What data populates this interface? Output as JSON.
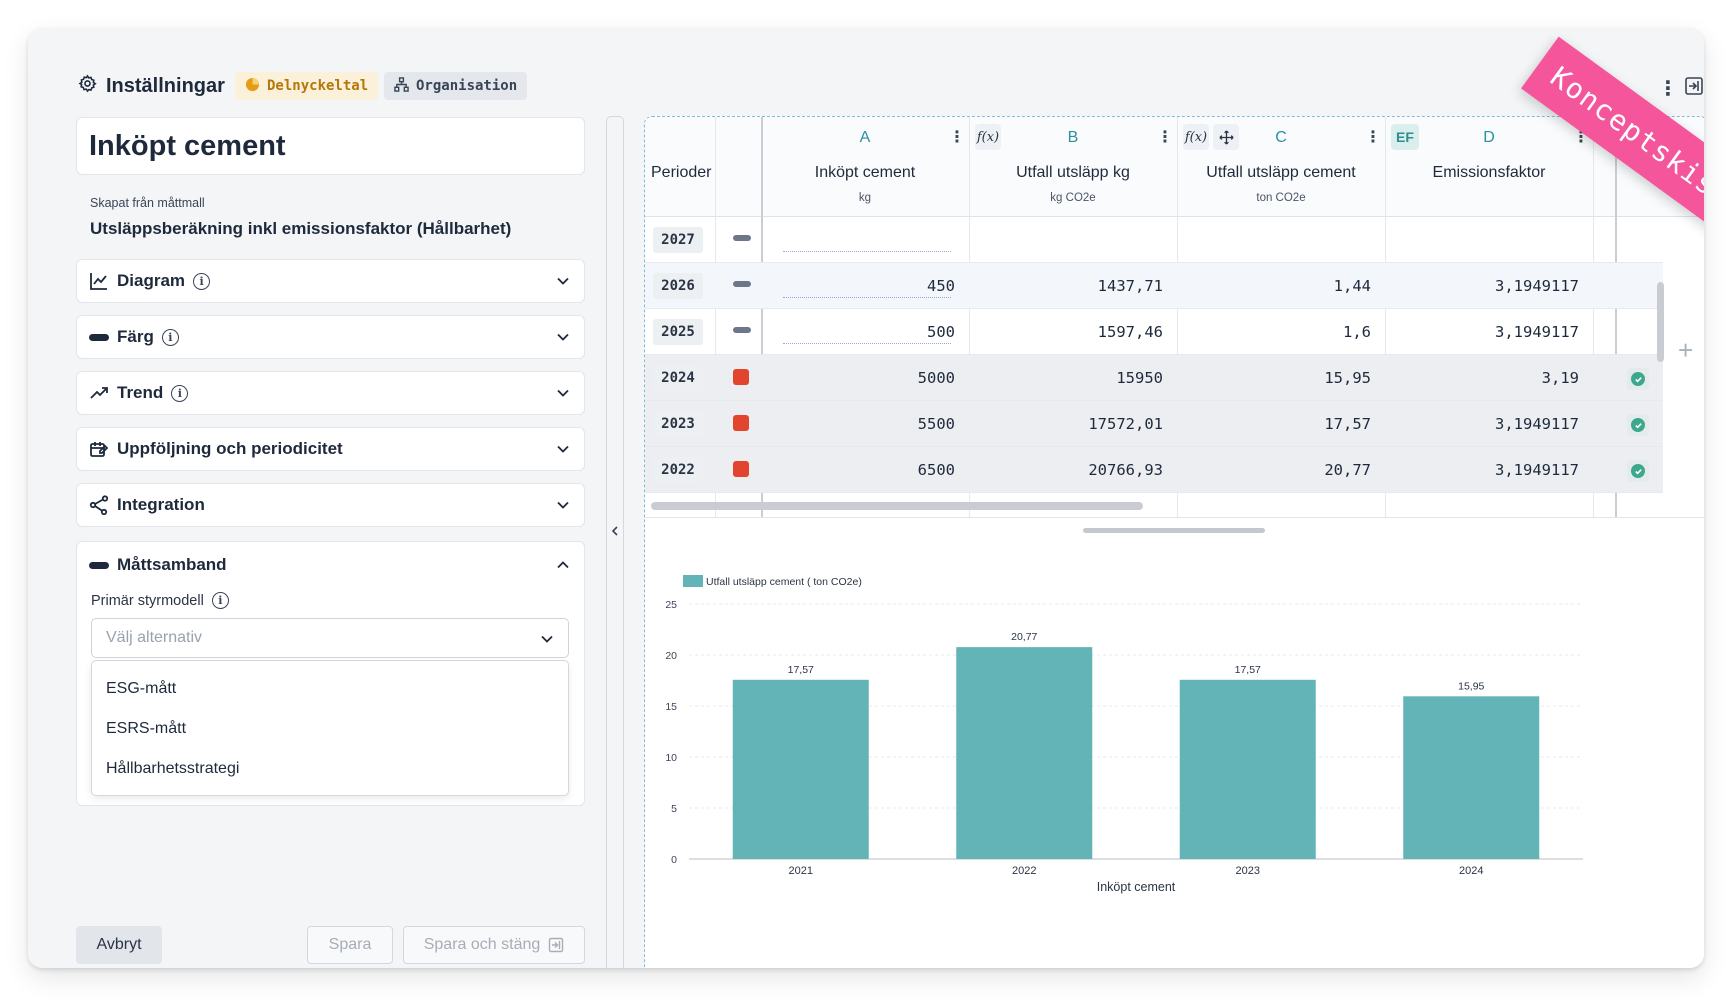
{
  "header": {
    "title": "Inställningar",
    "tag_kpi": "Delnyckeltal",
    "tag_org": "Organisation"
  },
  "ribbon": "Konceptskiss",
  "left": {
    "measure_name": "Inköpt cement",
    "template_caption": "Skapat från måttmall",
    "template_name": "Utsläppsberäkning inkl emissionsfaktor (Hållbarhet)",
    "sections": [
      {
        "label": "Diagram",
        "icon": "chart-line-icon"
      },
      {
        "label": "Färg",
        "icon": "color-pill-icon"
      },
      {
        "label": "Trend",
        "icon": "trend-up-icon"
      },
      {
        "label": "Uppföljning och periodicitet",
        "icon": "edit-calendar-icon"
      },
      {
        "label": "Integration",
        "icon": "integration-icon"
      }
    ],
    "relations": {
      "title": "Måttsamband",
      "field_label": "Primär styrmodell",
      "placeholder": "Välj alternativ",
      "options": [
        "ESG-mått",
        "ESRS-mått",
        "Hållbarhetsstrategi"
      ]
    },
    "buttons": {
      "cancel": "Avbryt",
      "save": "Spara",
      "save_close": "Spara och stäng"
    }
  },
  "grid": {
    "period_header": "Perioder",
    "columns": [
      {
        "letter": "A",
        "name": "Inköpt cement",
        "unit": "kg"
      },
      {
        "letter": "B",
        "name": "Utfall utsläpp kg",
        "unit": "kg CO2e"
      },
      {
        "letter": "C",
        "name": "Utfall utsläpp cement",
        "unit": "ton CO2e"
      },
      {
        "letter": "D",
        "name": "Emissionsfaktor",
        "unit": ""
      }
    ],
    "badges": {
      "fx": "f(x)",
      "ef": "EF"
    },
    "rows": [
      {
        "year": "2027",
        "status": "empty",
        "a": "",
        "b": "",
        "c": "",
        "d": ""
      },
      {
        "year": "2026",
        "status": "empty",
        "a": "450",
        "b": "1437,71",
        "c": "1,44",
        "d": "3,1949117"
      },
      {
        "year": "2025",
        "status": "empty",
        "a": "500",
        "b": "1597,46",
        "c": "1,6",
        "d": "3,1949117"
      },
      {
        "year": "2024",
        "status": "red",
        "a": "5000",
        "b": "15950",
        "c": "15,95",
        "d": "3,19"
      },
      {
        "year": "2023",
        "status": "red",
        "a": "5500",
        "b": "17572,01",
        "c": "17,57",
        "d": "3,1949117"
      },
      {
        "year": "2022",
        "status": "red",
        "a": "6500",
        "b": "20766,93",
        "c": "20,77",
        "d": "3,1949117"
      }
    ]
  },
  "chart_data": {
    "type": "bar",
    "title": "",
    "legend": "Utfall utsläpp cement ( ton CO2e)",
    "legend_position": "top-left",
    "categories": [
      "2021",
      "2022",
      "2023",
      "2024"
    ],
    "values": [
      17.57,
      20.77,
      17.57,
      15.95
    ],
    "value_labels": [
      "17,57",
      "20,77",
      "17,57",
      "15,95"
    ],
    "xlabel": "Inköpt cement",
    "ylabel": "",
    "ylim": [
      0,
      25
    ],
    "yticks": [
      0,
      5,
      10,
      15,
      20,
      25
    ],
    "grid": true,
    "color": "#62b4b6"
  },
  "colors": {
    "accent_teal": "#2b91a0",
    "bar": "#62b4b6",
    "status_red": "#e2452d",
    "ribbon": "#f4559b"
  }
}
